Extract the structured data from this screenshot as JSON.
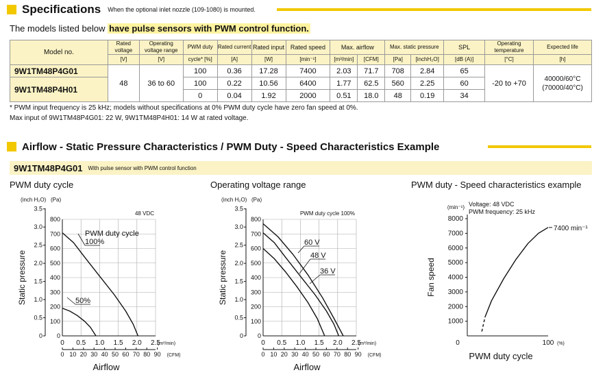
{
  "spec_section": {
    "title": "Specifications",
    "note": "When the optional inlet nozzle (109-1080) is mounted."
  },
  "lead": {
    "text": "The models listed below ",
    "highlight": "have pulse sensors with PWM control function."
  },
  "table": {
    "headers": {
      "model": "Model no.",
      "rated_voltage": "Rated voltage",
      "rated_voltage_unit": "[V]",
      "op_voltage": "Operating voltage range",
      "op_voltage_unit": "[V]",
      "pwm": "PWM duty",
      "pwm_unit": "cycle* [%]",
      "current": "Rated current",
      "current_unit": "[A]",
      "input": "Rated input",
      "input_unit": "[W]",
      "speed": "Rated speed",
      "speed_unit": "[min⁻¹]",
      "airflow": "Max. airflow",
      "airflow_u1": "[m³/min]",
      "airflow_u2": "[CFM]",
      "pressure": "Max. static pressure",
      "pressure_u1": "[Pa]",
      "pressure_u2": "[inchH₂O]",
      "spl": "SPL",
      "spl_unit": "[dB (A)]",
      "temp": "Operating temperature",
      "temp_unit": "[°C]",
      "life": "Expected life",
      "life_unit": "[h]"
    },
    "models": [
      "9W1TM48P4G01",
      "9W1TM48P4H01"
    ],
    "rated_voltage": "48",
    "op_voltage": "36 to 60",
    "temp": "-20 to +70",
    "life_line1": "40000/60°C",
    "life_line2": "(70000/40°C)",
    "rows": [
      {
        "pwm": "100",
        "current": "0.36",
        "input": "17.28",
        "speed": "7400",
        "m3": "2.03",
        "cfm": "71.7",
        "pa": "708",
        "inch": "2.84",
        "spl": "65"
      },
      {
        "pwm": "100",
        "current": "0.22",
        "input": "10.56",
        "speed": "6400",
        "m3": "1.77",
        "cfm": "62.5",
        "pa": "560",
        "inch": "2.25",
        "spl": "60"
      },
      {
        "pwm": "0",
        "current": "0.04",
        "input": "1.92",
        "speed": "2000",
        "m3": "0.51",
        "cfm": "18.0",
        "pa": "48",
        "inch": "0.19",
        "spl": "34"
      }
    ]
  },
  "footnotes": [
    "* PWM input frequency is 25 kHz; models without specifications at 0% PWM duty cycle have zero fan speed at 0%.",
    "Max input of 9W1TM48P4G01: 22 W, 9W1TM48P4H01: 14 W at rated voltage."
  ],
  "char_section": {
    "title": "Airflow - Static Pressure Characteristics / PWM Duty - Speed Characteristics Example"
  },
  "sub": {
    "model": "9W1TM48P4G01",
    "note": "With pulse sensor with PWM control function"
  },
  "chart_titles": [
    "PWM duty cycle",
    "Operating voltage range",
    "PWM duty - Speed characteristics example"
  ],
  "chart_data": [
    {
      "type": "line",
      "title": "PWM duty cycle",
      "note": "48 VDC",
      "xlabel": "Airflow",
      "ylabel": "Static pressure",
      "x_unit": "(m³/min)",
      "x2_unit": "(CFM)",
      "y_unit_inch": "(inch H₂O)",
      "y_unit_pa": "(Pa)",
      "xlim": [
        0,
        2.5
      ],
      "ylim_pa": [
        0,
        800
      ],
      "x_ticks": [
        "0",
        "0.5",
        "1.0",
        "1.5",
        "2.0",
        "2.5"
      ],
      "x2_ticks": [
        "0",
        "10",
        "20",
        "30",
        "40",
        "50",
        "60",
        "70",
        "80",
        "90"
      ],
      "y_ticks_inch": [
        "0",
        "0.5",
        "1.0",
        "1.5",
        "2.0",
        "2.5",
        "3.0",
        "3.5"
      ],
      "y_ticks_pa": [
        "0",
        "100",
        "200",
        "300",
        "400",
        "500",
        "600",
        "700",
        "800"
      ],
      "legend_title": "PWM duty cycle",
      "series": [
        {
          "name": "100%",
          "points": [
            [
              0,
              708
            ],
            [
              0.3,
              640
            ],
            [
              0.6,
              540
            ],
            [
              1.0,
              410
            ],
            [
              1.4,
              280
            ],
            [
              1.7,
              170
            ],
            [
              1.9,
              80
            ],
            [
              2.03,
              0
            ]
          ]
        },
        {
          "name": "50%",
          "points": [
            [
              0,
              190
            ],
            [
              0.2,
              170
            ],
            [
              0.4,
              140
            ],
            [
              0.6,
              100
            ],
            [
              0.75,
              60
            ],
            [
              0.9,
              0
            ]
          ]
        }
      ]
    },
    {
      "type": "line",
      "title": "Operating voltage range",
      "note": "PWM duty cycle 100%",
      "xlabel": "Airflow",
      "ylabel": "Static pressure",
      "x_unit": "(m³/min)",
      "x2_unit": "(CFM)",
      "y_unit_inch": "(inch H₂O)",
      "y_unit_pa": "(Pa)",
      "xlim": [
        0,
        2.5
      ],
      "ylim_pa": [
        0,
        800
      ],
      "x_ticks": [
        "0",
        "0.5",
        "1.0",
        "1.5",
        "2.0",
        "2.5"
      ],
      "x2_ticks": [
        "0",
        "10",
        "20",
        "30",
        "40",
        "50",
        "60",
        "70",
        "80",
        "90"
      ],
      "y_ticks_inch": [
        "0",
        "0.5",
        "1.0",
        "1.5",
        "2.0",
        "2.5",
        "3.0",
        "3.5"
      ],
      "y_ticks_pa": [
        "0",
        "100",
        "200",
        "300",
        "400",
        "500",
        "600",
        "700",
        "800"
      ],
      "series": [
        {
          "name": "60 V",
          "points": [
            [
              0,
              770
            ],
            [
              0.4,
              680
            ],
            [
              0.8,
              560
            ],
            [
              1.2,
              420
            ],
            [
              1.6,
              260
            ],
            [
              1.9,
              120
            ],
            [
              2.15,
              0
            ]
          ]
        },
        {
          "name": "48 V",
          "points": [
            [
              0,
              708
            ],
            [
              0.3,
              640
            ],
            [
              0.6,
              540
            ],
            [
              1.0,
              410
            ],
            [
              1.4,
              280
            ],
            [
              1.7,
              170
            ],
            [
              1.9,
              80
            ],
            [
              2.03,
              0
            ]
          ]
        },
        {
          "name": "36 V",
          "points": [
            [
              0,
              600
            ],
            [
              0.3,
              530
            ],
            [
              0.6,
              440
            ],
            [
              0.9,
              340
            ],
            [
              1.2,
              230
            ],
            [
              1.45,
              120
            ],
            [
              1.65,
              0
            ]
          ]
        }
      ]
    },
    {
      "type": "line",
      "title": "PWM duty - Speed characteristics example",
      "note_line1": "Voltage: 48 VDC",
      "note_line2": "PWM frequency: 25 kHz",
      "xlabel": "PWM duty cycle",
      "ylabel": "Fan speed",
      "y_unit": "(min⁻¹)",
      "x_unit": "(%)",
      "xlim": [
        0,
        100
      ],
      "ylim": [
        0,
        8000
      ],
      "x_ticks": [
        "0",
        "100"
      ],
      "y_ticks": [
        "1000",
        "2000",
        "3000",
        "4000",
        "5000",
        "6000",
        "7000",
        "8000"
      ],
      "end_label": "7400 min⁻¹",
      "series": [
        {
          "name": "dashed",
          "points": [
            [
              18,
              300
            ],
            [
              20,
              800
            ],
            [
              22,
              1300
            ]
          ]
        },
        {
          "name": "solid",
          "points": [
            [
              22,
              1300
            ],
            [
              30,
              2400
            ],
            [
              45,
              3900
            ],
            [
              60,
              5200
            ],
            [
              75,
              6300
            ],
            [
              88,
              7000
            ],
            [
              100,
              7400
            ]
          ]
        }
      ]
    }
  ]
}
